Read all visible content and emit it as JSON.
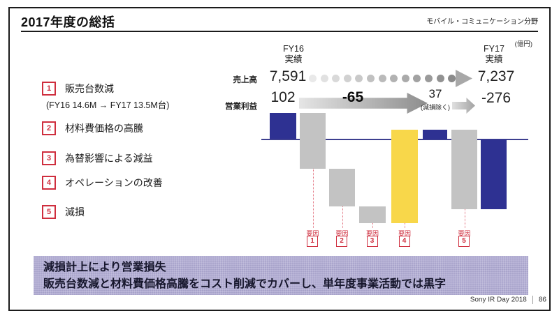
{
  "header": {
    "title": "2017年度の総括",
    "category": "モバイル・コミュニケーション分野",
    "unit": "(億円)"
  },
  "factors": [
    {
      "num": "1",
      "label": "販売台数減",
      "sub": "(FY16 14.6M → FY17 13.5M台)"
    },
    {
      "num": "2",
      "label": "材料費価格の高騰"
    },
    {
      "num": "3",
      "label": "為替影響による減益"
    },
    {
      "num": "4",
      "label": "オペレーションの改善"
    },
    {
      "num": "5",
      "label": "減損"
    }
  ],
  "chart_data": {
    "type": "waterfall",
    "unit": "億円",
    "col_headers": {
      "fy16_line1": "FY16",
      "fy16_line2": "実績",
      "fy17_line1": "FY17",
      "fy17_line2": "実績"
    },
    "revenue": {
      "label": "売上高",
      "fy16": 7591,
      "fy16_display": "7,591",
      "fy17": 7237,
      "fy17_display": "7,237"
    },
    "operating_income": {
      "label": "営業利益",
      "fy16": 102,
      "fy16_display": "102",
      "delta_excl_impairment": -65,
      "delta_display": "-65",
      "fy17_excl_impairment": 37,
      "excl_display": "37",
      "excl_note": "(減損除く)",
      "fy17": -276,
      "fy17_display": "-276"
    },
    "factor_tag_label": "要因",
    "bars": [
      {
        "name": "fy16-operating-income",
        "from": 0,
        "to": 102,
        "color": "navy"
      },
      {
        "name": "factor-1-unit-sales-decline",
        "from": 102,
        "to": -116,
        "value_est": -218,
        "color": "gray",
        "factor": "1"
      },
      {
        "name": "factor-2-material-cost-rise",
        "from": -116,
        "to": -265,
        "value_est": -149,
        "color": "gray",
        "factor": "2"
      },
      {
        "name": "factor-3-forex-impact",
        "from": -265,
        "to": -329,
        "value_est": -64,
        "color": "gray",
        "factor": "3"
      },
      {
        "name": "factor-4-operations-improvement",
        "from": -329,
        "to": 37,
        "value_est": 366,
        "color": "yellow",
        "factor": "4"
      },
      {
        "name": "fy17-oi-excl-impairment",
        "from": 0,
        "to": 37,
        "color": "navy"
      },
      {
        "name": "factor-5-impairment",
        "from": 37,
        "to": -276,
        "value_est": -313,
        "color": "gray",
        "factor": "5"
      },
      {
        "name": "fy17-operating-income",
        "from": 0,
        "to": -276,
        "color": "navy"
      }
    ],
    "axis": {
      "baseline_value": 0,
      "grid": false,
      "legend": false
    }
  },
  "colors": {
    "navy": "#2e3192",
    "gray": "#c3c3c3",
    "yellow": "#f8d74a",
    "accent_red": "#cf2e3e",
    "lavender": "#b4afd4",
    "baseline": "#3d3f8f"
  },
  "message": {
    "line1": "減損計上により営業損失",
    "line2": "販売台数減と材料費価格高騰をコスト削減でカバーし、単年度事業活動では黒字"
  },
  "footer": {
    "event": "Sony IR Day 2018",
    "page": "86"
  }
}
